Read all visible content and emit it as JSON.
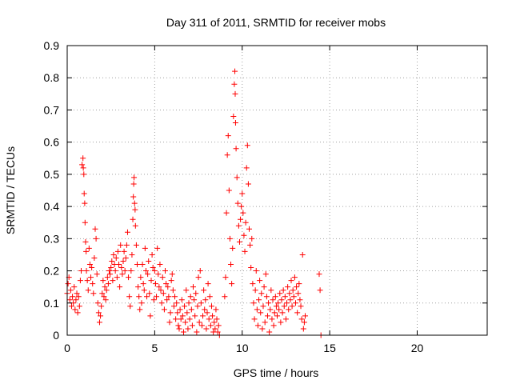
{
  "chart_data": {
    "type": "scatter",
    "title": "Day 311 of 2011, SRMTID for receiver mobs",
    "xlabel": "GPS time / hours",
    "ylabel": "SRMTID / TECUs",
    "xlim": [
      0,
      24
    ],
    "ylim": [
      0,
      0.9
    ],
    "xticks": [
      0,
      5,
      10,
      15,
      20
    ],
    "yticks": [
      0,
      0.1,
      0.2,
      0.3,
      0.4,
      0.5,
      0.6,
      0.7,
      0.8,
      0.9
    ],
    "grid": true,
    "marker": "+",
    "color": "#ff0000",
    "points": [
      [
        0.0,
        0.13
      ],
      [
        0.05,
        0.16
      ],
      [
        0.1,
        0.18
      ],
      [
        0.15,
        0.11
      ],
      [
        0.2,
        0.14
      ],
      [
        0.25,
        0.09
      ],
      [
        0.3,
        0.12
      ],
      [
        0.35,
        0.1
      ],
      [
        0.4,
        0.15
      ],
      [
        0.45,
        0.08
      ],
      [
        0.5,
        0.11
      ],
      [
        0.55,
        0.13
      ],
      [
        0.6,
        0.07
      ],
      [
        0.65,
        0.12
      ],
      [
        0.7,
        0.09
      ],
      [
        0.75,
        0.17
      ],
      [
        0.8,
        0.2
      ],
      [
        0.85,
        0.53
      ],
      [
        0.9,
        0.55
      ],
      [
        0.92,
        0.52
      ],
      [
        0.95,
        0.5
      ],
      [
        0.97,
        0.44
      ],
      [
        1.0,
        0.41
      ],
      [
        1.02,
        0.35
      ],
      [
        1.05,
        0.29
      ],
      [
        1.08,
        0.26
      ],
      [
        1.1,
        0.2
      ],
      [
        1.15,
        0.17
      ],
      [
        1.2,
        0.14
      ],
      [
        1.25,
        0.27
      ],
      [
        1.3,
        0.22
      ],
      [
        1.35,
        0.18
      ],
      [
        1.4,
        0.21
      ],
      [
        1.45,
        0.16
      ],
      [
        1.5,
        0.13
      ],
      [
        1.55,
        0.24
      ],
      [
        1.6,
        0.33
      ],
      [
        1.65,
        0.3
      ],
      [
        1.7,
        0.19
      ],
      [
        1.75,
        0.1
      ],
      [
        1.8,
        0.07
      ],
      [
        1.85,
        0.04
      ],
      [
        1.9,
        0.06
      ],
      [
        1.95,
        0.09
      ],
      [
        2.0,
        0.13
      ],
      [
        2.05,
        0.17
      ],
      [
        2.1,
        0.12
      ],
      [
        2.15,
        0.15
      ],
      [
        2.2,
        0.11
      ],
      [
        2.25,
        0.14
      ],
      [
        2.3,
        0.18
      ],
      [
        2.35,
        0.16
      ],
      [
        2.4,
        0.2
      ],
      [
        2.45,
        0.19
      ],
      [
        2.5,
        0.21
      ],
      [
        2.55,
        0.23
      ],
      [
        2.6,
        0.17
      ],
      [
        2.65,
        0.25
      ],
      [
        2.7,
        0.22
      ],
      [
        2.75,
        0.2
      ],
      [
        2.8,
        0.24
      ],
      [
        2.85,
        0.18
      ],
      [
        2.9,
        0.26
      ],
      [
        2.95,
        0.22
      ],
      [
        3.0,
        0.15
      ],
      [
        3.05,
        0.28
      ],
      [
        3.1,
        0.21
      ],
      [
        3.15,
        0.19
      ],
      [
        3.2,
        0.23
      ],
      [
        3.25,
        0.26
      ],
      [
        3.3,
        0.2
      ],
      [
        3.35,
        0.24
      ],
      [
        3.4,
        0.28
      ],
      [
        3.45,
        0.32
      ],
      [
        3.5,
        0.18
      ],
      [
        3.55,
        0.12
      ],
      [
        3.6,
        0.09
      ],
      [
        3.65,
        0.2
      ],
      [
        3.7,
        0.25
      ],
      [
        3.75,
        0.36
      ],
      [
        3.78,
        0.43
      ],
      [
        3.8,
        0.47
      ],
      [
        3.82,
        0.49
      ],
      [
        3.85,
        0.41
      ],
      [
        3.88,
        0.39
      ],
      [
        3.9,
        0.34
      ],
      [
        3.95,
        0.28
      ],
      [
        4.0,
        0.22
      ],
      [
        4.05,
        0.15
      ],
      [
        4.1,
        0.12
      ],
      [
        4.15,
        0.08
      ],
      [
        4.2,
        0.18
      ],
      [
        4.25,
        0.1
      ],
      [
        4.3,
        0.22
      ],
      [
        4.35,
        0.16
      ],
      [
        4.4,
        0.14
      ],
      [
        4.45,
        0.27
      ],
      [
        4.5,
        0.2
      ],
      [
        4.55,
        0.12
      ],
      [
        4.6,
        0.19
      ],
      [
        4.65,
        0.23
      ],
      [
        4.7,
        0.13
      ],
      [
        4.75,
        0.06
      ],
      [
        4.8,
        0.17
      ],
      [
        4.85,
        0.25
      ],
      [
        4.9,
        0.21
      ],
      [
        4.95,
        0.11
      ],
      [
        5.0,
        0.2
      ],
      [
        5.05,
        0.16
      ],
      [
        5.1,
        0.12
      ],
      [
        5.15,
        0.27
      ],
      [
        5.2,
        0.19
      ],
      [
        5.25,
        0.15
      ],
      [
        5.3,
        0.22
      ],
      [
        5.35,
        0.14
      ],
      [
        5.4,
        0.1
      ],
      [
        5.45,
        0.18
      ],
      [
        5.5,
        0.13
      ],
      [
        5.55,
        0.08
      ],
      [
        5.6,
        0.2
      ],
      [
        5.65,
        0.16
      ],
      [
        5.7,
        0.11
      ],
      [
        5.75,
        0.15
      ],
      [
        5.8,
        0.12
      ],
      [
        5.85,
        0.04
      ],
      [
        5.9,
        0.07
      ],
      [
        5.95,
        0.17
      ],
      [
        6.0,
        0.19
      ],
      [
        6.05,
        0.14
      ],
      [
        6.1,
        0.09
      ],
      [
        6.15,
        0.12
      ],
      [
        6.2,
        0.05
      ],
      [
        6.25,
        0.1
      ],
      [
        6.3,
        0.07
      ],
      [
        6.35,
        0.03
      ],
      [
        6.4,
        0.02
      ],
      [
        6.45,
        0.08
      ],
      [
        6.5,
        0.05
      ],
      [
        6.55,
        0.11
      ],
      [
        6.6,
        0.06
      ],
      [
        6.65,
        0.01
      ],
      [
        6.7,
        0.09
      ],
      [
        6.75,
        0.04
      ],
      [
        6.8,
        0.14
      ],
      [
        6.85,
        0.07
      ],
      [
        6.9,
        0.02
      ],
      [
        6.95,
        0.1
      ],
      [
        7.0,
        0.05
      ],
      [
        7.05,
        0.12
      ],
      [
        7.1,
        0.08
      ],
      [
        7.15,
        0.03
      ],
      [
        7.2,
        0.15
      ],
      [
        7.25,
        0.11
      ],
      [
        7.3,
        0.06
      ],
      [
        7.35,
        0.13
      ],
      [
        7.4,
        0.01
      ],
      [
        7.45,
        0.09
      ],
      [
        7.5,
        0.18
      ],
      [
        7.55,
        0.04
      ],
      [
        7.6,
        0.2
      ],
      [
        7.65,
        0.1
      ],
      [
        7.7,
        0.03
      ],
      [
        7.75,
        0.06
      ],
      [
        7.8,
        0.14
      ],
      [
        7.85,
        0.08
      ],
      [
        7.9,
        0.11
      ],
      [
        7.95,
        0.02
      ],
      [
        8.0,
        0.07
      ],
      [
        8.05,
        0.16
      ],
      [
        8.1,
        0.05
      ],
      [
        8.15,
        0.12
      ],
      [
        8.2,
        0.03
      ],
      [
        8.25,
        0.09
      ],
      [
        8.3,
        0.06
      ],
      [
        8.35,
        0.01
      ],
      [
        8.4,
        0.04
      ],
      [
        8.45,
        0.02
      ],
      [
        8.5,
        0.08
      ],
      [
        8.55,
        0.05
      ],
      [
        8.6,
        0.01
      ],
      [
        8.65,
        0.03
      ],
      [
        8.7,
        0.0
      ],
      [
        9.0,
        0.12
      ],
      [
        9.05,
        0.18
      ],
      [
        9.1,
        0.38
      ],
      [
        9.15,
        0.56
      ],
      [
        9.2,
        0.62
      ],
      [
        9.25,
        0.45
      ],
      [
        9.3,
        0.3
      ],
      [
        9.35,
        0.22
      ],
      [
        9.4,
        0.16
      ],
      [
        9.45,
        0.27
      ],
      [
        9.5,
        0.68
      ],
      [
        9.55,
        0.78
      ],
      [
        9.58,
        0.82
      ],
      [
        9.6,
        0.75
      ],
      [
        9.62,
        0.66
      ],
      [
        9.65,
        0.58
      ],
      [
        9.7,
        0.49
      ],
      [
        9.75,
        0.41
      ],
      [
        9.8,
        0.34
      ],
      [
        9.85,
        0.29
      ],
      [
        9.9,
        0.36
      ],
      [
        9.95,
        0.4
      ],
      [
        10.0,
        0.44
      ],
      [
        10.05,
        0.38
      ],
      [
        10.1,
        0.31
      ],
      [
        10.15,
        0.26
      ],
      [
        10.2,
        0.35
      ],
      [
        10.25,
        0.52
      ],
      [
        10.3,
        0.59
      ],
      [
        10.35,
        0.47
      ],
      [
        10.4,
        0.33
      ],
      [
        10.45,
        0.28
      ],
      [
        10.5,
        0.21
      ],
      [
        10.55,
        0.3
      ],
      [
        10.6,
        0.16
      ],
      [
        10.65,
        0.1
      ],
      [
        10.7,
        0.05
      ],
      [
        10.75,
        0.14
      ],
      [
        10.8,
        0.2
      ],
      [
        10.85,
        0.08
      ],
      [
        10.9,
        0.03
      ],
      [
        10.95,
        0.11
      ],
      [
        11.0,
        0.17
      ],
      [
        11.05,
        0.07
      ],
      [
        11.1,
        0.13
      ],
      [
        11.15,
        0.02
      ],
      [
        11.2,
        0.09
      ],
      [
        11.25,
        0.15
      ],
      [
        11.3,
        0.04
      ],
      [
        11.35,
        0.19
      ],
      [
        11.4,
        0.12
      ],
      [
        11.45,
        0.06
      ],
      [
        11.5,
        0.1
      ],
      [
        11.55,
        0.01
      ],
      [
        11.6,
        0.08
      ],
      [
        11.65,
        0.14
      ],
      [
        11.7,
        0.05
      ],
      [
        11.75,
        0.11
      ],
      [
        11.8,
        0.03
      ],
      [
        11.85,
        0.07
      ],
      [
        11.9,
        0.12
      ],
      [
        11.95,
        0.09
      ],
      [
        12.0,
        0.06
      ],
      [
        12.05,
        0.1
      ],
      [
        12.1,
        0.08
      ],
      [
        12.15,
        0.13
      ],
      [
        12.2,
        0.04
      ],
      [
        12.25,
        0.11
      ],
      [
        12.3,
        0.07
      ],
      [
        12.35,
        0.14
      ],
      [
        12.4,
        0.09
      ],
      [
        12.45,
        0.12
      ],
      [
        12.5,
        0.05
      ],
      [
        12.55,
        0.1
      ],
      [
        12.6,
        0.15
      ],
      [
        12.65,
        0.08
      ],
      [
        12.7,
        0.13
      ],
      [
        12.75,
        0.11
      ],
      [
        12.8,
        0.17
      ],
      [
        12.85,
        0.09
      ],
      [
        12.9,
        0.14
      ],
      [
        12.95,
        0.12
      ],
      [
        13.0,
        0.18
      ],
      [
        13.05,
        0.1
      ],
      [
        13.1,
        0.15
      ],
      [
        13.15,
        0.07
      ],
      [
        13.2,
        0.13
      ],
      [
        13.25,
        0.16
      ],
      [
        13.3,
        0.11
      ],
      [
        13.35,
        0.09
      ],
      [
        13.4,
        0.05
      ],
      [
        13.45,
        0.25
      ],
      [
        13.5,
        0.02
      ],
      [
        13.55,
        0.04
      ],
      [
        13.6,
        0.06
      ],
      [
        14.4,
        0.19
      ],
      [
        14.45,
        0.14
      ],
      [
        14.5,
        0.0
      ]
    ]
  }
}
